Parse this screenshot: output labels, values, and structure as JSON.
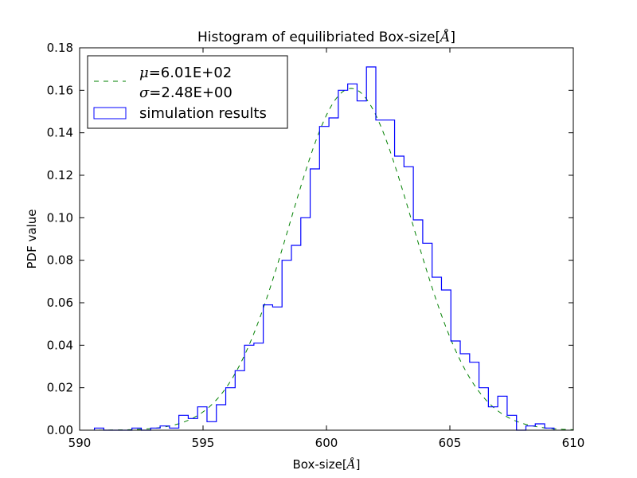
{
  "chart_data": {
    "type": "histogram",
    "title": "Histogram of equilibriated Box-size[Å]",
    "title_text": "Histogram of equilibriated Box-size",
    "xlabel": "Box-size[Å]",
    "xlabel_text": "Box-size",
    "unit_symbol": "Å",
    "ylabel": "PDF value",
    "xlim": [
      590,
      610
    ],
    "ylim": [
      0.0,
      0.18
    ],
    "xticks": [
      590,
      595,
      600,
      605,
      610
    ],
    "yticks": [
      "0.00",
      "0.02",
      "0.04",
      "0.06",
      "0.08",
      "0.10",
      "0.12",
      "0.14",
      "0.16",
      "0.18"
    ],
    "grid": false,
    "legend_position": "top-left",
    "series": [
      {
        "name": "μ=6.01E+02\nσ=2.48E+00",
        "legend_lines": [
          {
            "symbol": "μ",
            "text": "=6.01E+02"
          },
          {
            "symbol": "σ",
            "text": "=2.48E+00"
          }
        ],
        "kind": "normal-pdf-fit",
        "style": "dashed",
        "color": "#008000",
        "mu": 601.0,
        "sigma": 2.48
      },
      {
        "name": "simulation results",
        "kind": "step-histogram",
        "color": "#0000ff",
        "bin_edges": [
          590.6,
          590.98,
          591.36,
          591.74,
          592.12,
          592.5,
          592.88,
          593.26,
          593.64,
          594.02,
          594.4,
          594.78,
          595.16,
          595.54,
          595.92,
          596.3,
          596.68,
          597.06,
          597.44,
          597.82,
          598.2,
          598.58,
          598.96,
          599.34,
          599.72,
          600.1,
          600.48,
          600.86,
          601.24,
          601.62,
          602.0,
          602.38,
          602.76,
          603.14,
          603.52,
          603.9,
          604.28,
          604.66,
          605.04,
          605.42,
          605.8,
          606.18,
          606.56,
          606.94,
          607.32,
          607.7,
          608.08,
          608.46,
          608.84,
          609.22
        ],
        "densities": [
          0.001,
          0.0,
          0.0,
          0.0,
          0.001,
          0.0,
          0.001,
          0.002,
          0.001,
          0.007,
          0.0055,
          0.011,
          0.004,
          0.012,
          0.02,
          0.028,
          0.04,
          0.041,
          0.059,
          0.058,
          0.08,
          0.087,
          0.1,
          0.123,
          0.143,
          0.147,
          0.16,
          0.163,
          0.155,
          0.171,
          0.146,
          0.146,
          0.129,
          0.124,
          0.099,
          0.088,
          0.072,
          0.066,
          0.042,
          0.036,
          0.032,
          0.02,
          0.011,
          0.016,
          0.007,
          0.0,
          0.002,
          0.003,
          0.001
        ]
      }
    ]
  }
}
